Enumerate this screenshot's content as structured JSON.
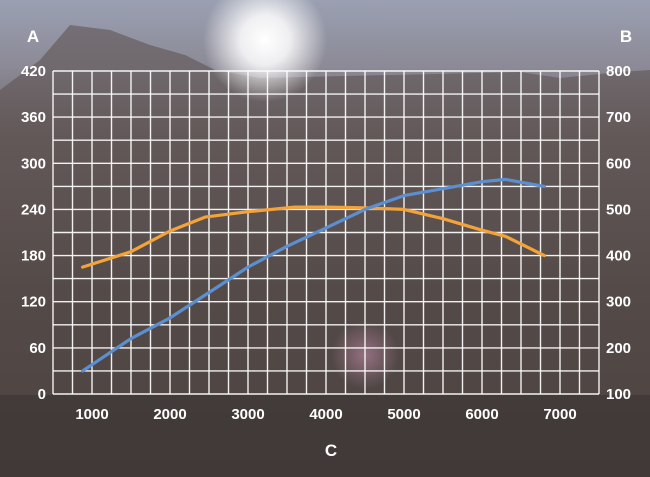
{
  "chart_data": {
    "type": "line",
    "title": "",
    "xlabel": "C",
    "ylabel_left": "A",
    "ylabel_right": "B",
    "x_ticks": [
      1000,
      2000,
      3000,
      4000,
      5000,
      6000,
      7000
    ],
    "xlim": [
      500,
      7500
    ],
    "y_left_ticks": [
      0,
      60,
      120,
      180,
      240,
      300,
      360,
      420
    ],
    "ylim_left": [
      0,
      420
    ],
    "y_right_ticks": [
      100,
      200,
      300,
      400,
      500,
      600,
      700,
      800
    ],
    "ylim_right": [
      100,
      800
    ],
    "grid": true,
    "series": [
      {
        "axis": "left",
        "color": "#f2a33a",
        "x": [
          880,
          1500,
          2000,
          2450,
          3000,
          3600,
          4000,
          4500,
          5000,
          5500,
          6000,
          6300,
          6800
        ],
        "y": [
          165,
          185,
          212,
          230,
          237,
          243,
          243,
          242,
          240,
          228,
          213,
          205,
          180
        ]
      },
      {
        "axis": "right",
        "color": "#5b8fd0",
        "x": [
          880,
          1500,
          2000,
          2500,
          3000,
          3500,
          4000,
          4500,
          5000,
          5500,
          6000,
          6300,
          6800
        ],
        "y": [
          150,
          220,
          265,
          320,
          375,
          420,
          460,
          500,
          530,
          545,
          560,
          565,
          550
        ]
      }
    ]
  }
}
